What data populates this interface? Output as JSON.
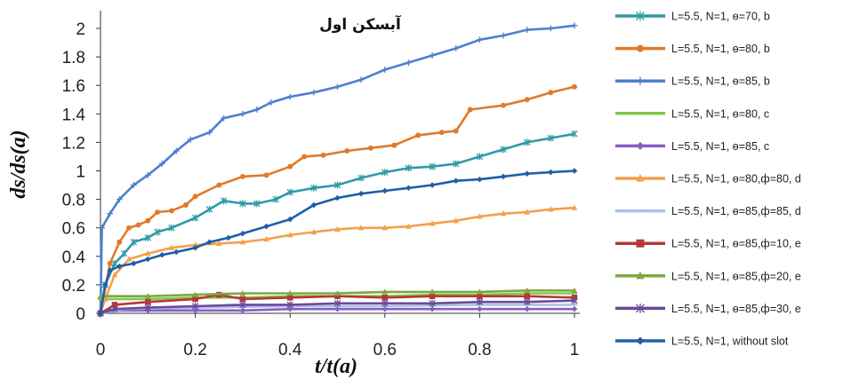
{
  "chart_data": {
    "type": "line",
    "title": "آبسکن اول",
    "xlabel": "t/t(a)",
    "ylabel": "ds/ds(a)",
    "xlim": [
      0,
      1
    ],
    "ylim": [
      0,
      2.1
    ],
    "x_ticks": [
      "0",
      "0.2",
      "0.4",
      "0.6",
      "0.8",
      "1"
    ],
    "y_ticks": [
      "0",
      "0.2",
      "0.4",
      "0.6",
      "0.8",
      "1",
      "1.2",
      "1.4",
      "1.6",
      "1.8",
      "2"
    ],
    "grid": false,
    "legend_position": "right",
    "series": [
      {
        "name": "L=5.5, N=1, ө=70, b",
        "color": "#2e9aa6",
        "marker": "star",
        "points": [
          [
            0,
            0
          ],
          [
            0.01,
            0.2
          ],
          [
            0.03,
            0.35
          ],
          [
            0.05,
            0.42
          ],
          [
            0.07,
            0.5
          ],
          [
            0.1,
            0.53
          ],
          [
            0.12,
            0.57
          ],
          [
            0.15,
            0.6
          ],
          [
            0.2,
            0.67
          ],
          [
            0.23,
            0.73
          ],
          [
            0.26,
            0.79
          ],
          [
            0.3,
            0.77
          ],
          [
            0.33,
            0.77
          ],
          [
            0.37,
            0.8
          ],
          [
            0.4,
            0.85
          ],
          [
            0.45,
            0.88
          ],
          [
            0.5,
            0.9
          ],
          [
            0.55,
            0.95
          ],
          [
            0.6,
            0.99
          ],
          [
            0.65,
            1.02
          ],
          [
            0.7,
            1.03
          ],
          [
            0.75,
            1.05
          ],
          [
            0.8,
            1.1
          ],
          [
            0.85,
            1.15
          ],
          [
            0.9,
            1.2
          ],
          [
            0.95,
            1.23
          ],
          [
            1.0,
            1.26
          ]
        ]
      },
      {
        "name": "L=5.5, N=1, ө=80, b",
        "color": "#e07a2a",
        "marker": "circle",
        "points": [
          [
            0,
            0
          ],
          [
            0.02,
            0.35
          ],
          [
            0.04,
            0.5
          ],
          [
            0.06,
            0.6
          ],
          [
            0.08,
            0.62
          ],
          [
            0.1,
            0.65
          ],
          [
            0.12,
            0.71
          ],
          [
            0.15,
            0.72
          ],
          [
            0.18,
            0.76
          ],
          [
            0.2,
            0.82
          ],
          [
            0.25,
            0.9
          ],
          [
            0.3,
            0.96
          ],
          [
            0.35,
            0.97
          ],
          [
            0.4,
            1.03
          ],
          [
            0.43,
            1.1
          ],
          [
            0.47,
            1.11
          ],
          [
            0.52,
            1.14
          ],
          [
            0.57,
            1.16
          ],
          [
            0.62,
            1.18
          ],
          [
            0.67,
            1.25
          ],
          [
            0.72,
            1.27
          ],
          [
            0.75,
            1.28
          ],
          [
            0.78,
            1.43
          ],
          [
            0.85,
            1.46
          ],
          [
            0.9,
            1.5
          ],
          [
            0.95,
            1.55
          ],
          [
            1.0,
            1.59
          ]
        ]
      },
      {
        "name": "L=5.5, N=1, ө=85, b",
        "color": "#4f7fcf",
        "marker": "plus",
        "points": [
          [
            0,
            0
          ],
          [
            0.003,
            0.6
          ],
          [
            0.02,
            0.7
          ],
          [
            0.04,
            0.8
          ],
          [
            0.07,
            0.9
          ],
          [
            0.1,
            0.97
          ],
          [
            0.13,
            1.05
          ],
          [
            0.16,
            1.14
          ],
          [
            0.19,
            1.22
          ],
          [
            0.23,
            1.27
          ],
          [
            0.26,
            1.37
          ],
          [
            0.3,
            1.4
          ],
          [
            0.33,
            1.43
          ],
          [
            0.36,
            1.48
          ],
          [
            0.4,
            1.52
          ],
          [
            0.45,
            1.55
          ],
          [
            0.5,
            1.59
          ],
          [
            0.55,
            1.64
          ],
          [
            0.6,
            1.71
          ],
          [
            0.65,
            1.76
          ],
          [
            0.7,
            1.81
          ],
          [
            0.75,
            1.86
          ],
          [
            0.8,
            1.92
          ],
          [
            0.85,
            1.95
          ],
          [
            0.9,
            1.99
          ],
          [
            0.95,
            2.0
          ],
          [
            1.0,
            2.02
          ]
        ]
      },
      {
        "name": "L=5.5, N=1, ө=80, c",
        "color": "#7fc84a",
        "marker": "dash",
        "points": [
          [
            0,
            0.1
          ],
          [
            0.1,
            0.1
          ],
          [
            0.2,
            0.11
          ],
          [
            0.3,
            0.11
          ],
          [
            0.4,
            0.12
          ],
          [
            0.5,
            0.12
          ],
          [
            0.6,
            0.12
          ],
          [
            0.7,
            0.13
          ],
          [
            0.8,
            0.13
          ],
          [
            0.9,
            0.14
          ],
          [
            1.0,
            0.14
          ]
        ]
      },
      {
        "name": "L=5.5, N=1, ө=85, c",
        "color": "#8a5cc4",
        "marker": "diamond",
        "points": [
          [
            0,
            0
          ],
          [
            0.02,
            0.02
          ],
          [
            0.1,
            0.02
          ],
          [
            0.2,
            0.02
          ],
          [
            0.3,
            0.02
          ],
          [
            0.4,
            0.03
          ],
          [
            0.5,
            0.03
          ],
          [
            0.6,
            0.03
          ],
          [
            0.7,
            0.03
          ],
          [
            0.8,
            0.03
          ],
          [
            0.9,
            0.03
          ],
          [
            1.0,
            0.03
          ]
        ]
      },
      {
        "name": "L=5.5, N=1, ө=80,ф=80, d",
        "color": "#f5a04a",
        "marker": "triangle",
        "points": [
          [
            0,
            0
          ],
          [
            0.01,
            0.1
          ],
          [
            0.03,
            0.27
          ],
          [
            0.06,
            0.38
          ],
          [
            0.1,
            0.42
          ],
          [
            0.15,
            0.46
          ],
          [
            0.2,
            0.48
          ],
          [
            0.25,
            0.49
          ],
          [
            0.3,
            0.5
          ],
          [
            0.35,
            0.52
          ],
          [
            0.4,
            0.55
          ],
          [
            0.45,
            0.57
          ],
          [
            0.5,
            0.59
          ],
          [
            0.55,
            0.6
          ],
          [
            0.6,
            0.6
          ],
          [
            0.65,
            0.61
          ],
          [
            0.7,
            0.63
          ],
          [
            0.75,
            0.65
          ],
          [
            0.8,
            0.68
          ],
          [
            0.85,
            0.7
          ],
          [
            0.9,
            0.71
          ],
          [
            0.95,
            0.73
          ],
          [
            1.0,
            0.74
          ]
        ]
      },
      {
        "name": "L=5.5, N=1, ө=85,ф=85, d",
        "color": "#a9c1e8",
        "marker": "dash",
        "points": [
          [
            0,
            0
          ],
          [
            0.05,
            0.03
          ],
          [
            0.2,
            0.04
          ],
          [
            0.4,
            0.05
          ],
          [
            0.6,
            0.05
          ],
          [
            0.8,
            0.06
          ],
          [
            1.0,
            0.06
          ]
        ]
      },
      {
        "name": "L=5.5, N=1, ө=85,ф=10,  e",
        "color": "#b53838",
        "marker": "square",
        "points": [
          [
            0,
            0
          ],
          [
            0.03,
            0.06
          ],
          [
            0.1,
            0.08
          ],
          [
            0.2,
            0.1
          ],
          [
            0.25,
            0.13
          ],
          [
            0.3,
            0.1
          ],
          [
            0.4,
            0.11
          ],
          [
            0.5,
            0.12
          ],
          [
            0.6,
            0.11
          ],
          [
            0.7,
            0.12
          ],
          [
            0.8,
            0.12
          ],
          [
            0.9,
            0.12
          ],
          [
            1.0,
            0.11
          ]
        ]
      },
      {
        "name": "L=5.5, N=1, ө=85,ф=20,  e",
        "color": "#7ea840",
        "marker": "triangle",
        "points": [
          [
            0,
            0.12
          ],
          [
            0.1,
            0.12
          ],
          [
            0.2,
            0.13
          ],
          [
            0.3,
            0.14
          ],
          [
            0.4,
            0.14
          ],
          [
            0.5,
            0.14
          ],
          [
            0.6,
            0.15
          ],
          [
            0.7,
            0.15
          ],
          [
            0.8,
            0.15
          ],
          [
            0.9,
            0.16
          ],
          [
            1.0,
            0.16
          ]
        ]
      },
      {
        "name": "L=5.5, N=1, ө=85,ф=30,  e",
        "color": "#6a4a9e",
        "marker": "star",
        "points": [
          [
            0,
            0
          ],
          [
            0.03,
            0.03
          ],
          [
            0.1,
            0.04
          ],
          [
            0.2,
            0.05
          ],
          [
            0.3,
            0.06
          ],
          [
            0.4,
            0.06
          ],
          [
            0.5,
            0.07
          ],
          [
            0.6,
            0.07
          ],
          [
            0.7,
            0.07
          ],
          [
            0.8,
            0.08
          ],
          [
            0.9,
            0.08
          ],
          [
            1.0,
            0.09
          ]
        ]
      },
      {
        "name": "L=5.5, N=1, without slot",
        "color": "#1f5fa8",
        "marker": "diamond",
        "points": [
          [
            0,
            0
          ],
          [
            0.01,
            0.2
          ],
          [
            0.02,
            0.3
          ],
          [
            0.04,
            0.33
          ],
          [
            0.07,
            0.35
          ],
          [
            0.1,
            0.38
          ],
          [
            0.13,
            0.41
          ],
          [
            0.16,
            0.43
          ],
          [
            0.2,
            0.46
          ],
          [
            0.23,
            0.5
          ],
          [
            0.27,
            0.53
          ],
          [
            0.3,
            0.56
          ],
          [
            0.35,
            0.61
          ],
          [
            0.4,
            0.66
          ],
          [
            0.45,
            0.76
          ],
          [
            0.5,
            0.81
          ],
          [
            0.55,
            0.84
          ],
          [
            0.6,
            0.86
          ],
          [
            0.65,
            0.88
          ],
          [
            0.7,
            0.9
          ],
          [
            0.75,
            0.93
          ],
          [
            0.8,
            0.94
          ],
          [
            0.85,
            0.96
          ],
          [
            0.9,
            0.98
          ],
          [
            0.95,
            0.99
          ],
          [
            1.0,
            1.0
          ]
        ]
      }
    ]
  }
}
